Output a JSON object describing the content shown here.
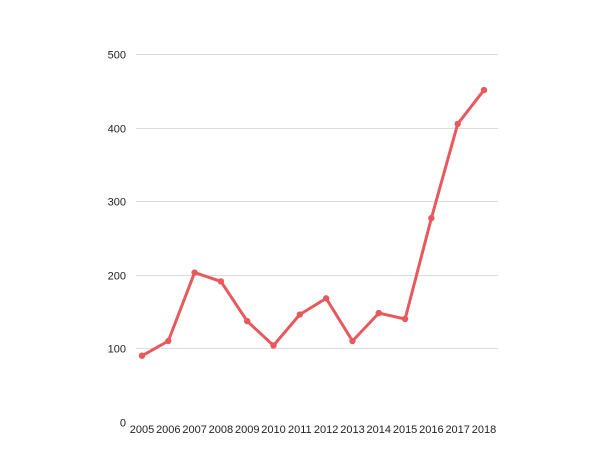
{
  "chart_data": {
    "type": "line",
    "x": [
      "2005",
      "2006",
      "2007",
      "2008",
      "2009",
      "2010",
      "2011",
      "2012",
      "2013",
      "2014",
      "2015",
      "2016",
      "2017",
      "2018"
    ],
    "series": [
      {
        "values": [
          90,
          110,
          203,
          191,
          137,
          104,
          146,
          168,
          110,
          148,
          140,
          277,
          405,
          451
        ],
        "color": "#e8595e"
      }
    ],
    "ylim": [
      0,
      500
    ],
    "yticks": [
      0,
      100,
      200,
      300,
      400,
      500
    ],
    "grid": true,
    "title": "",
    "xlabel": "",
    "ylabel": ""
  }
}
